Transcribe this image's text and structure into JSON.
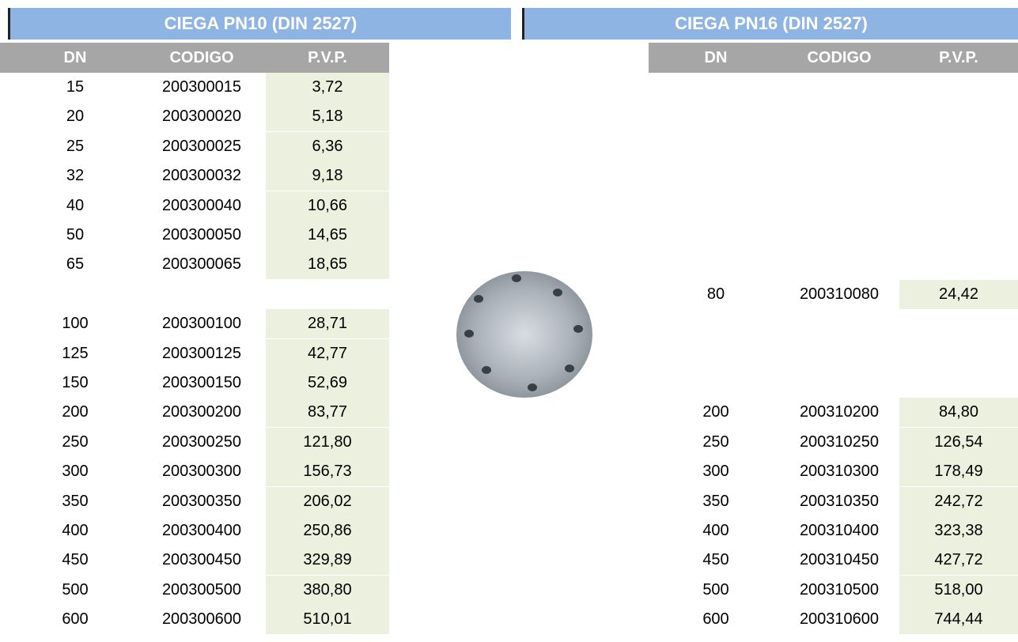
{
  "tables": [
    {
      "title": "CIEGA PN10 (DIN 2527)",
      "columns": [
        "DN",
        "CODIGO",
        "P.V.P."
      ]
    },
    {
      "title": "CIEGA PN16 (DIN 2527)",
      "columns": [
        "DN",
        "CODIGO",
        "P.V.P."
      ]
    }
  ],
  "rows": [
    {
      "pn10": [
        "15",
        "200300015",
        "3,72"
      ],
      "pn16": null
    },
    {
      "pn10": [
        "20",
        "200300020",
        "5,18"
      ],
      "pn16": null
    },
    {
      "pn10": [
        "25",
        "200300025",
        "6,36"
      ],
      "pn16": null
    },
    {
      "pn10": [
        "32",
        "200300032",
        "9,18"
      ],
      "pn16": null
    },
    {
      "pn10": [
        "40",
        "200300040",
        "10,66"
      ],
      "pn16": null
    },
    {
      "pn10": [
        "50",
        "200300050",
        "14,65"
      ],
      "pn16": null
    },
    {
      "pn10": [
        "65",
        "200300065",
        "18,65"
      ],
      "pn16": null
    },
    {
      "pn10": null,
      "pn16": [
        "80",
        "200310080",
        "24,42"
      ]
    },
    {
      "pn10": [
        "100",
        "200300100",
        "28,71"
      ],
      "pn16": null
    },
    {
      "pn10": [
        "125",
        "200300125",
        "42,77"
      ],
      "pn16": null
    },
    {
      "pn10": [
        "150",
        "200300150",
        "52,69"
      ],
      "pn16": null
    },
    {
      "pn10": [
        "200",
        "200300200",
        "83,77"
      ],
      "pn16": [
        "200",
        "200310200",
        "84,80"
      ]
    },
    {
      "pn10": [
        "250",
        "200300250",
        "121,80"
      ],
      "pn16": [
        "250",
        "200310250",
        "126,54"
      ]
    },
    {
      "pn10": [
        "300",
        "200300300",
        "156,73"
      ],
      "pn16": [
        "300",
        "200310300",
        "178,49"
      ]
    },
    {
      "pn10": [
        "350",
        "200300350",
        "206,02"
      ],
      "pn16": [
        "350",
        "200310350",
        "242,72"
      ]
    },
    {
      "pn10": [
        "400",
        "200300400",
        "250,86"
      ],
      "pn16": [
        "400",
        "200310400",
        "323,38"
      ]
    },
    {
      "pn10": [
        "450",
        "200300450",
        "329,89"
      ],
      "pn16": [
        "450",
        "200310450",
        "427,72"
      ]
    },
    {
      "pn10": [
        "500",
        "200300500",
        "380,80"
      ],
      "pn16": [
        "500",
        "200310500",
        "518,00"
      ]
    },
    {
      "pn10": [
        "600",
        "200300600",
        "510,01"
      ],
      "pn16": [
        "600",
        "200310600",
        "744,44"
      ]
    }
  ]
}
